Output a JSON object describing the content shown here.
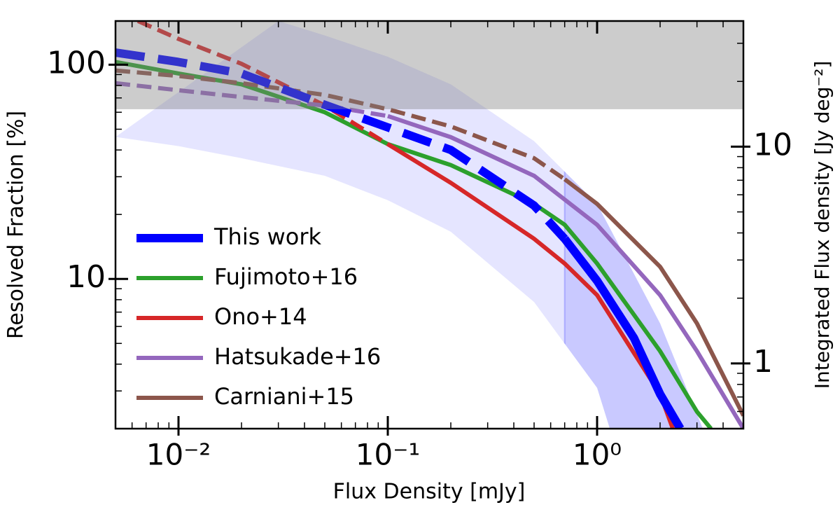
{
  "chart_data": {
    "type": "line",
    "xlabel": "Flux Density [mJy]",
    "ylabel": "Resolved Fraction [%]",
    "y2label": "Integrated Flux density [Jy deg⁻²]",
    "xscale": "log",
    "yscale": "log",
    "xlim": [
      0.005,
      5
    ],
    "ylim": [
      2,
      160
    ],
    "y2lim": [
      0.5,
      38
    ],
    "xticks": [
      {
        "value": 0.01,
        "label": "10⁻²"
      },
      {
        "value": 0.1,
        "label": "10⁻¹"
      },
      {
        "value": 1,
        "label": "10⁰"
      }
    ],
    "xminor": [
      0.006,
      0.007,
      0.008,
      0.009,
      0.02,
      0.03,
      0.04,
      0.05,
      0.06,
      0.07,
      0.08,
      0.09,
      0.2,
      0.3,
      0.4,
      0.5,
      0.6,
      0.7,
      0.8,
      0.9,
      2,
      3,
      4,
      5
    ],
    "yticks": [
      10,
      100
    ],
    "yminor": [
      2,
      3,
      4,
      5,
      6,
      7,
      8,
      9,
      20,
      30,
      40,
      50,
      60,
      70,
      80,
      90
    ],
    "y2ticks": [
      1,
      10
    ],
    "y2minor": [
      0.6,
      0.7,
      0.8,
      0.9,
      2,
      3,
      4,
      5,
      6,
      7,
      8,
      9,
      20,
      30
    ],
    "legend": "lower left",
    "gray_band": {
      "range": [
        62,
        160
      ],
      "color": "#808080"
    },
    "band": {
      "color": "#0000ff",
      "highlight_from": 0.7,
      "x_upper": [
        0.03,
        0.05,
        0.1,
        0.2,
        0.5,
        1,
        2,
        3.2
      ],
      "upper": [
        160,
        137,
        109,
        81,
        44,
        22.4,
        6.2,
        2
      ],
      "x_lower": [
        0.005,
        0.01,
        0.02,
        0.05,
        0.1,
        0.2,
        0.5,
        1,
        1.15
      ],
      "lower": [
        46,
        41.7,
        36.6,
        30.3,
        23.3,
        16.6,
        7.8,
        3.1,
        2
      ]
    },
    "series": [
      {
        "name": "Fujimoto+16",
        "color": "#2ca02c",
        "width": 6,
        "dashed_to": 0.005,
        "x": [
          0.005,
          0.01,
          0.02,
          0.05,
          0.1,
          0.2,
          0.5,
          0.7,
          1,
          2,
          3,
          3.5
        ],
        "values": [
          103,
          91,
          81,
          60,
          42.6,
          34,
          22.4,
          17.9,
          11.8,
          4.6,
          2.4,
          2
        ]
      },
      {
        "name": "Ono+14",
        "color": "#d62728",
        "width": 6,
        "dashed_to": 0.1,
        "x": [
          0.0064,
          0.01,
          0.02,
          0.05,
          0.1,
          0.2,
          0.5,
          0.7,
          1,
          2,
          2.3
        ],
        "values": [
          160,
          132,
          101,
          64.5,
          42.6,
          28.1,
          15.4,
          11.8,
          8.4,
          2.9,
          2
        ]
      },
      {
        "name": "Hatsukade+16",
        "color": "#9467bd",
        "width": 6,
        "dashed_to": 0.1,
        "x": [
          0.005,
          0.01,
          0.02,
          0.05,
          0.1,
          0.2,
          0.5,
          1,
          2,
          3,
          5
        ],
        "values": [
          82,
          76,
          70.7,
          64.5,
          57.6,
          45.9,
          30.3,
          17.9,
          8.4,
          4.6,
          2
        ]
      },
      {
        "name": "Carniani+15",
        "color": "#8c564b",
        "width": 6,
        "dashed_to": 0.7,
        "x": [
          0.005,
          0.01,
          0.02,
          0.05,
          0.1,
          0.2,
          0.5,
          0.7,
          1,
          2,
          3,
          5
        ],
        "values": [
          94,
          88.6,
          82,
          72.3,
          62,
          51.5,
          36.6,
          29.2,
          22.4,
          11.4,
          6.2,
          2.3
        ]
      },
      {
        "name": "This work",
        "color": "#0000ff",
        "width": 12,
        "dashed_to": 0.7,
        "x": [
          0.005,
          0.01,
          0.02,
          0.05,
          0.1,
          0.2,
          0.5,
          0.7,
          1,
          1.5,
          2,
          2.5
        ],
        "values": [
          114,
          103,
          91,
          65,
          51,
          40,
          22,
          15.4,
          9.8,
          5.3,
          2.9,
          2
        ]
      }
    ],
    "legend_order": [
      4,
      0,
      1,
      2,
      3
    ]
  }
}
